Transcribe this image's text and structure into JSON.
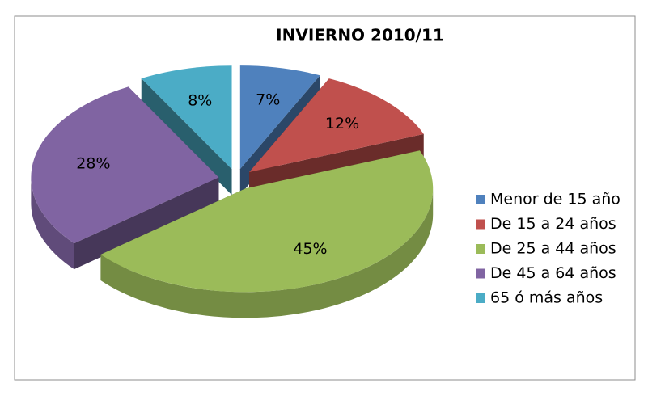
{
  "chart_data": {
    "type": "pie",
    "title": "INVIERNO 2010/11",
    "categories": [
      "Menor de 15 año",
      "De 15 a 24 años",
      "De 25 a 44 años",
      "De 45 a 64 años",
      "65 ó más años"
    ],
    "values": [
      7,
      12,
      45,
      28,
      8
    ],
    "value_labels": [
      "7%",
      "12%",
      "45%",
      "28%",
      "8%"
    ],
    "colors": [
      "#4f81bd",
      "#c0504d",
      "#9bbb59",
      "#8064a2",
      "#4bacc6"
    ],
    "legend": "right"
  }
}
